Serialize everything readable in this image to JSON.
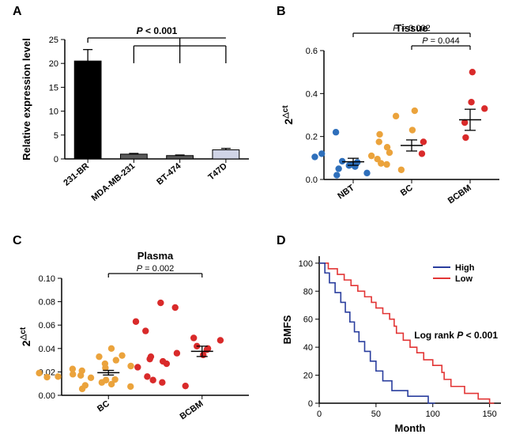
{
  "colors": {
    "black": "#000000",
    "grayBar": "#5b5b5b",
    "lightBar": "#d0d4e6",
    "blue": "#2e6fbb",
    "orange": "#eba33c",
    "red": "#d92a2a",
    "surv_high": "#2a3e9e",
    "surv_low": "#e23535",
    "white": "#ffffff"
  },
  "panelLabels": {
    "A": "A",
    "B": "B",
    "C": "C",
    "D": "D"
  },
  "panelLabelFontSize": 16,
  "panelA": {
    "type": "bar",
    "yLabel": "Relative expression level",
    "categories": [
      "231-BR",
      "MDA-MB-231",
      "BT-474",
      "T47D"
    ],
    "values": [
      20.5,
      1.0,
      0.7,
      1.9
    ],
    "errors": [
      2.4,
      0.15,
      0.12,
      0.3
    ],
    "barColors": [
      "#000000",
      "#5b5b5b",
      "#5b5b5b",
      "#d0d4e6"
    ],
    "ylim": [
      0,
      25
    ],
    "yticks": [
      0,
      5,
      10,
      15,
      20,
      25
    ],
    "sigLabel": "P < 0.001",
    "axisFont": 12,
    "labelFont": 13,
    "tickFont": 11,
    "barWidth": 0.58,
    "capHalf": 6,
    "bracket": {
      "targets": [
        1,
        2,
        3
      ],
      "dropShort": 6,
      "dropLong": 22
    }
  },
  "panelB": {
    "type": "scatter",
    "title": "Tissue",
    "yLabel": "2",
    "ySup": "△ct",
    "groups": [
      {
        "name": "NBT",
        "color": "#2e6fbb",
        "values": [
          0.02,
          0.03,
          0.05,
          0.06,
          0.065,
          0.07,
          0.08,
          0.085,
          0.105,
          0.12,
          0.22
        ]
      },
      {
        "name": "BC",
        "color": "#eba33c",
        "values": [
          0.045,
          0.07,
          0.075,
          0.095,
          0.11,
          0.125,
          0.15,
          0.175,
          0.21,
          0.23,
          0.295,
          0.32
        ]
      },
      {
        "name": "BCBM",
        "color": "#d92a2a",
        "values": [
          0.12,
          0.175,
          0.195,
          0.265,
          0.33,
          0.36,
          0.5
        ]
      }
    ],
    "ylim": [
      0,
      0.6
    ],
    "yticks": [
      0.0,
      0.2,
      0.4,
      0.6
    ],
    "sig": [
      {
        "from": 0,
        "to": 2,
        "label": "P = 0.002",
        "level": 2
      },
      {
        "from": 1,
        "to": 2,
        "label": "P = 0.044",
        "level": 1
      }
    ],
    "axisFont": 12,
    "titleFont": 13,
    "tickFont": 11,
    "markerR": 4.2,
    "errCapHalf": 7
  },
  "panelC": {
    "type": "scatter",
    "title": "Plasma",
    "yLabel": "2",
    "ySup": "△ct",
    "groups": [
      {
        "name": "BC",
        "color": "#eba33c",
        "values": [
          0.0055,
          0.0075,
          0.0085,
          0.0095,
          0.011,
          0.013,
          0.0135,
          0.015,
          0.0155,
          0.016,
          0.017,
          0.018,
          0.019,
          0.021,
          0.0225,
          0.0235,
          0.025,
          0.027,
          0.03,
          0.033,
          0.034,
          0.04
        ]
      },
      {
        "name": "BCBM",
        "color": "#d92a2a",
        "values": [
          0.008,
          0.011,
          0.013,
          0.016,
          0.024,
          0.027,
          0.029,
          0.031,
          0.033,
          0.0345,
          0.036,
          0.039,
          0.04,
          0.042,
          0.047,
          0.049,
          0.055,
          0.063,
          0.075,
          0.079
        ]
      }
    ],
    "ylim": [
      0,
      0.1
    ],
    "yticks": [
      0.0,
      0.02,
      0.04,
      0.06,
      0.08,
      0.1
    ],
    "sig": [
      {
        "from": 0,
        "to": 1,
        "label": "P = 0.002",
        "level": 1
      }
    ],
    "axisFont": 12,
    "titleFont": 13,
    "tickFont": 11,
    "markerR": 4.2,
    "errCapHalf": 7
  },
  "panelD": {
    "type": "survival",
    "yLabel": "BMFS",
    "xLabel": "Month",
    "xlim": [
      0,
      160
    ],
    "ylim": [
      0,
      105
    ],
    "xticks": [
      0,
      50,
      100,
      150
    ],
    "yticks": [
      0,
      20,
      40,
      60,
      80,
      100
    ],
    "legend": [
      {
        "label": "High",
        "color": "#2a3e9e"
      },
      {
        "label": "Low",
        "color": "#e23535"
      }
    ],
    "sigLabel": "Log rank P < 0.001",
    "axisFont": 12,
    "labelFont": 13,
    "tickFont": 11,
    "lineWidth": 1.6,
    "high": [
      [
        0,
        100
      ],
      [
        5,
        100
      ],
      [
        5,
        93
      ],
      [
        9,
        93
      ],
      [
        9,
        86
      ],
      [
        14,
        86
      ],
      [
        14,
        79
      ],
      [
        19,
        79
      ],
      [
        19,
        72
      ],
      [
        23,
        72
      ],
      [
        23,
        65
      ],
      [
        27,
        65
      ],
      [
        27,
        58
      ],
      [
        31,
        58
      ],
      [
        31,
        51
      ],
      [
        35,
        51
      ],
      [
        35,
        44
      ],
      [
        40,
        44
      ],
      [
        40,
        37
      ],
      [
        45,
        37
      ],
      [
        45,
        30
      ],
      [
        50,
        30
      ],
      [
        50,
        23
      ],
      [
        56,
        23
      ],
      [
        56,
        16
      ],
      [
        64,
        16
      ],
      [
        64,
        9
      ],
      [
        78,
        9
      ],
      [
        78,
        5
      ],
      [
        96,
        5
      ],
      [
        96,
        0
      ],
      [
        102,
        0
      ]
    ],
    "low": [
      [
        0,
        100
      ],
      [
        8,
        100
      ],
      [
        8,
        96
      ],
      [
        16,
        96
      ],
      [
        16,
        92
      ],
      [
        22,
        92
      ],
      [
        22,
        88
      ],
      [
        28,
        88
      ],
      [
        28,
        84
      ],
      [
        34,
        84
      ],
      [
        34,
        80
      ],
      [
        40,
        80
      ],
      [
        40,
        76
      ],
      [
        46,
        76
      ],
      [
        46,
        72
      ],
      [
        50,
        72
      ],
      [
        50,
        68
      ],
      [
        56,
        68
      ],
      [
        56,
        64
      ],
      [
        62,
        64
      ],
      [
        62,
        60
      ],
      [
        66,
        60
      ],
      [
        66,
        55
      ],
      [
        68,
        55
      ],
      [
        68,
        50
      ],
      [
        74,
        50
      ],
      [
        74,
        45
      ],
      [
        80,
        45
      ],
      [
        80,
        40
      ],
      [
        86,
        40
      ],
      [
        86,
        36
      ],
      [
        92,
        36
      ],
      [
        92,
        31
      ],
      [
        100,
        31
      ],
      [
        100,
        27
      ],
      [
        108,
        27
      ],
      [
        108,
        22
      ],
      [
        110,
        22
      ],
      [
        110,
        17
      ],
      [
        116,
        17
      ],
      [
        116,
        12
      ],
      [
        128,
        12
      ],
      [
        128,
        7
      ],
      [
        140,
        7
      ],
      [
        140,
        3
      ],
      [
        150,
        3
      ],
      [
        150,
        0
      ],
      [
        154,
        0
      ]
    ]
  }
}
